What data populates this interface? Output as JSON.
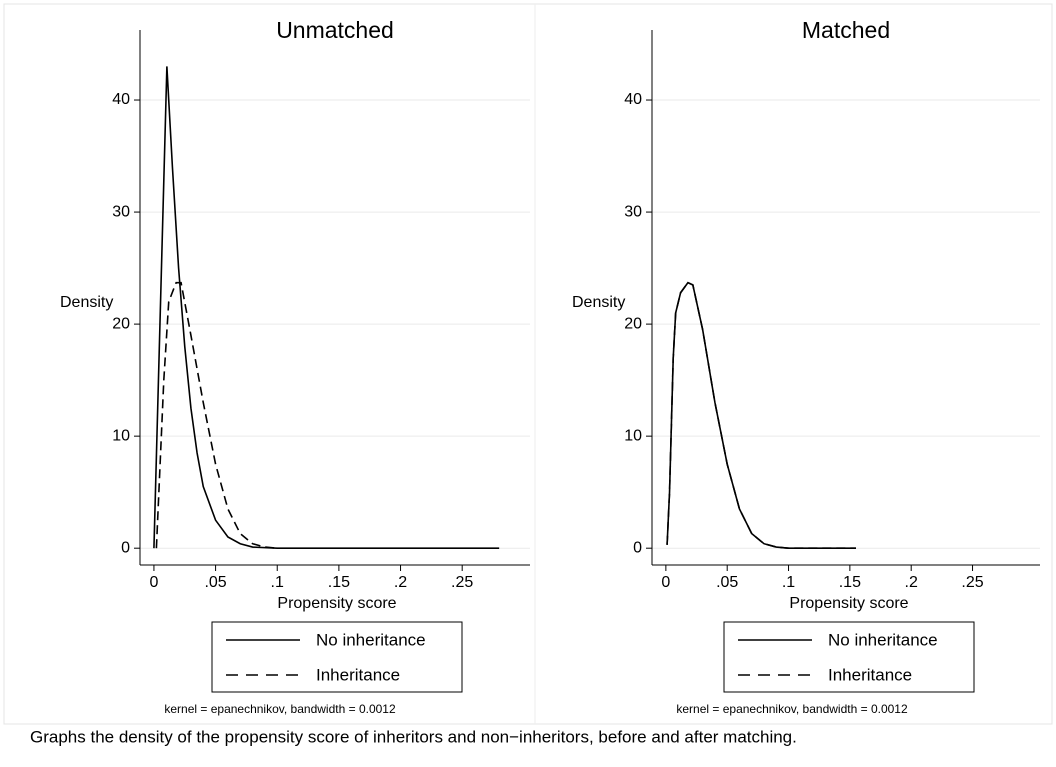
{
  "chart_data": [
    {
      "type": "line",
      "title": "Unmatched",
      "x_label": "Propensity score",
      "y_label": "Density",
      "note": "kernel = epanechnikov, bandwidth = 0.0012",
      "xlim": [
        -0.0113,
        0.305
      ],
      "ylim": [
        -1.5,
        46.25
      ],
      "xticks": [
        0,
        {
          "value": 0.05,
          "label": ".05"
        },
        {
          "value": 0.1,
          "label": ".1"
        },
        {
          "value": 0.15,
          "label": ".15"
        },
        {
          "value": 0.2,
          "label": ".2"
        },
        {
          "value": 0.25,
          "label": ".25"
        }
      ],
      "yticks": [
        0,
        10,
        20,
        30,
        40
      ],
      "grid": true,
      "series": [
        {
          "name": "No inheritance",
          "color": "#000000",
          "line_style": "solid",
          "x": [
            0,
            0.0105,
            0.015,
            0.02,
            0.025,
            0.03,
            0.035,
            0.04,
            0.05,
            0.06,
            0.07,
            0.08,
            0.1,
            0.28
          ],
          "values": [
            0,
            43,
            34,
            25,
            18,
            12.5,
            8.5,
            5.5,
            2.5,
            1,
            0.4,
            0.1,
            0,
            0
          ]
        },
        {
          "name": "Inheritance",
          "color": "#000000",
          "line_style": "dashed",
          "x": [
            0.002,
            0.008,
            0.012,
            0.018,
            0.022,
            0.03,
            0.04,
            0.05,
            0.06,
            0.07,
            0.08,
            0.09,
            0.1
          ],
          "values": [
            0,
            15,
            22,
            23.7,
            23.7,
            19,
            13,
            7.5,
            3.5,
            1.3,
            0.4,
            0.1,
            0
          ]
        }
      ]
    },
    {
      "type": "line",
      "title": "Matched",
      "x_label": "Propensity score",
      "y_label": "Density",
      "note": "kernel = epanechnikov, bandwidth = 0.0012",
      "xlim": [
        -0.0113,
        0.305
      ],
      "ylim": [
        -1.5,
        46.25
      ],
      "xticks": [
        0,
        {
          "value": 0.05,
          "label": ".05"
        },
        {
          "value": 0.1,
          "label": ".1"
        },
        {
          "value": 0.15,
          "label": ".15"
        },
        {
          "value": 0.2,
          "label": ".2"
        },
        {
          "value": 0.25,
          "label": ".25"
        }
      ],
      "yticks": [
        0,
        10,
        20,
        30,
        40
      ],
      "grid": true,
      "series": [
        {
          "name": "No inheritance",
          "color": "#000000",
          "line_style": "solid",
          "x": [
            0.001,
            0.003,
            0.006,
            0.008,
            0.012,
            0.018,
            0.022,
            0.03,
            0.04,
            0.05,
            0.06,
            0.07,
            0.08,
            0.09,
            0.1,
            0.155
          ],
          "values": [
            0.3,
            5,
            17,
            21,
            22.8,
            23.7,
            23.5,
            19.5,
            13,
            7.5,
            3.5,
            1.3,
            0.4,
            0.1,
            0,
            0
          ]
        },
        {
          "name": "Inheritance",
          "color": "#000000",
          "line_style": "dashed",
          "x": [
            0.001,
            0.003,
            0.006,
            0.008,
            0.012,
            0.018,
            0.022,
            0.03,
            0.04,
            0.05,
            0.06,
            0.07,
            0.08,
            0.09,
            0.1,
            0.155
          ],
          "values": [
            0.3,
            5,
            17,
            21,
            22.8,
            23.7,
            23.5,
            19.5,
            13,
            7.5,
            3.5,
            1.3,
            0.4,
            0.1,
            0,
            0
          ]
        }
      ]
    }
  ],
  "caption": "Graphs the density of the propensity score of inheritors and non−inheritors, before and after matching."
}
